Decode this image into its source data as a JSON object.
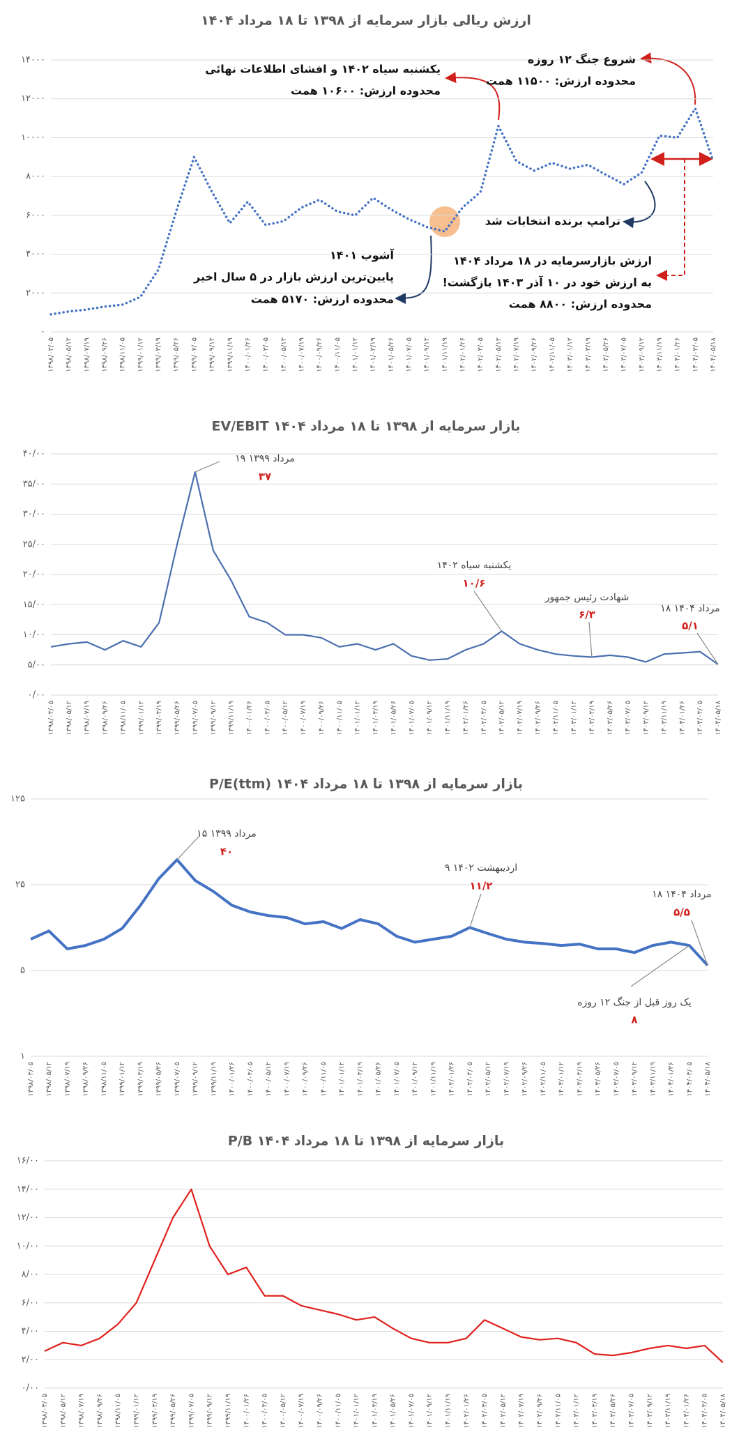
{
  "chart_data": [
    {
      "type": "line",
      "title": "ارزش ریالی بازار سرمایه از ۱۳۹۸ تا ۱۸ مرداد ۱۴۰۴",
      "line_style": "dotted",
      "color": "#4472c4",
      "grid": true,
      "categories": [
        "۱۳۹۸/۰۳/۰۵",
        "۱۳۹۸/۰۵/۱۲",
        "۱۳۹۸/۰۷/۱۹",
        "۱۳۹۸/۰۹/۲۶",
        "۱۳۹۸/۱۱/۰۵",
        "۱۳۹۹/۰۱/۱۲",
        "۱۳۹۹/۰۳/۱۹",
        "۱۳۹۹/۰۵/۲۶",
        "۱۳۹۹/۰۷/۰۵",
        "۱۳۹۹/۰۹/۱۲",
        "۱۳۹۹/۱۱/۱۹",
        "۱۴۰۰/۰۱/۲۶",
        "۱۴۰۰/۰۳/۰۵",
        "۱۴۰۰/۰۵/۱۲",
        "۱۴۰۰/۰۷/۱۹",
        "۱۴۰۰/۰۹/۲۶",
        "۱۴۰۰/۱۱/۰۵",
        "۱۴۰۱/۰۱/۱۲",
        "۱۴۰۱/۰۳/۱۹",
        "۱۴۰۱/۰۵/۲۶",
        "۱۴۰۱/۰۷/۰۵",
        "۱۴۰۱/۰۹/۱۲",
        "۱۴۰۱/۱۱/۱۹",
        "۱۴۰۲/۰۱/۲۶",
        "۱۴۰۲/۰۳/۰۵",
        "۱۴۰۲/۰۵/۱۲",
        "۱۴۰۲/۰۷/۱۹",
        "۱۴۰۲/۰۹/۲۶",
        "۱۴۰۲/۱۱/۰۵",
        "۱۴۰۳/۰۱/۱۲",
        "۱۴۰۳/۰۳/۱۹",
        "۱۴۰۳/۰۵/۲۶",
        "۱۴۰۳/۰۷/۰۵",
        "۱۴۰۳/۰۹/۱۲",
        "۱۴۰۳/۱۱/۱۹",
        "۱۴۰۴/۰۱/۲۶",
        "۱۴۰۴/۰۳/۰۵",
        "۱۴۰۴/۰۵/۱۸"
      ],
      "values": [
        900,
        1050,
        1150,
        1300,
        1400,
        1800,
        3200,
        6200,
        9000,
        7200,
        5600,
        6700,
        5500,
        5700,
        6400,
        6800,
        6200,
        6000,
        6900,
        6300,
        5800,
        5400,
        5170,
        6400,
        7200,
        10600,
        8800,
        8300,
        8700,
        8400,
        8600,
        8100,
        7600,
        8200,
        10100,
        10000,
        11500,
        8800
      ],
      "ylim": [
        0,
        14000
      ],
      "yticks": [
        {
          "value": 0,
          "label": "۰"
        },
        {
          "value": 2000,
          "label": "۲۰۰۰"
        },
        {
          "value": 4000,
          "label": "۴۰۰۰"
        },
        {
          "value": 6000,
          "label": "۶۰۰۰"
        },
        {
          "value": 8000,
          "label": "۸۰۰۰"
        },
        {
          "value": 10000,
          "label": "۱۰۰۰۰"
        },
        {
          "value": 12000,
          "label": "۱۲۰۰۰"
        },
        {
          "value": 14000,
          "label": "۱۴۰۰۰"
        }
      ],
      "annotations": [
        {
          "lines": [
            "شروع جنگ ۱۲ روزه",
            "محدوده ارزش: ۱۱۵۰۰ همت"
          ]
        },
        {
          "lines": [
            "یکشنبه سیاه ۱۴۰۲ و افشای اطلاعات نهائی",
            "محدوده ارزش: ۱۰۶۰۰ همت"
          ]
        },
        {
          "lines": [
            "ترامپ برنده انتخابات شد"
          ]
        },
        {
          "lines": [
            "آشوب ۱۴۰۱",
            "پایین‌ترین ارزش بازار در ۵ سال اخیر",
            "محدوده ارزش: ۵۱۷۰ همت"
          ]
        },
        {
          "lines": [
            "ارزش بازارسرمایه در ۱۸ مرداد ۱۴۰۴",
            "به ارزش خود در ۱۰ آذر ۱۴۰۳ بازگشت!",
            "محدوده ارزش: ۸۸۰۰ همت"
          ]
        }
      ]
    },
    {
      "type": "line",
      "title": "EV/EBIT بازار سرمایه از ۱۳۹۸ تا ۱۸ مرداد ۱۴۰۴",
      "line_style": "solid",
      "color": "#4a6fae",
      "grid": true,
      "categories": [
        "۱۳۹۸/۰۳/۰۵",
        "۱۳۹۸/۰۵/۱۲",
        "۱۳۹۸/۰۷/۱۹",
        "۱۳۹۸/۰۹/۲۶",
        "۱۳۹۸/۱۱/۰۵",
        "۱۳۹۹/۰۱/۱۲",
        "۱۳۹۹/۰۳/۱۹",
        "۱۳۹۹/۰۵/۲۶",
        "۱۳۹۹/۰۷/۰۵",
        "۱۳۹۹/۰۹/۱۲",
        "۱۳۹۹/۱۱/۱۹",
        "۱۴۰۰/۰۱/۲۶",
        "۱۴۰۰/۰۳/۰۵",
        "۱۴۰۰/۰۵/۱۲",
        "۱۴۰۰/۰۷/۱۹",
        "۱۴۰۰/۰۹/۲۶",
        "۱۴۰۰/۱۱/۰۵",
        "۱۴۰۱/۰۱/۱۲",
        "۱۴۰۱/۰۳/۱۹",
        "۱۴۰۱/۰۵/۲۶",
        "۱۴۰۱/۰۷/۰۵",
        "۱۴۰۱/۰۹/۱۲",
        "۱۴۰۱/۱۱/۱۹",
        "۱۴۰۲/۰۱/۲۶",
        "۱۴۰۲/۰۳/۰۵",
        "۱۴۰۲/۰۵/۱۲",
        "۱۴۰۲/۰۷/۱۹",
        "۱۴۰۲/۰۹/۲۶",
        "۱۴۰۲/۱۱/۰۵",
        "۱۴۰۳/۰۱/۱۲",
        "۱۴۰۳/۰۳/۱۹",
        "۱۴۰۳/۰۵/۲۶",
        "۱۴۰۳/۰۷/۰۵",
        "۱۴۰۳/۰۹/۱۲",
        "۱۴۰۳/۱۱/۱۹",
        "۱۴۰۴/۰۱/۲۶",
        "۱۴۰۴/۰۳/۰۵",
        "۱۴۰۴/۰۵/۱۸"
      ],
      "values": [
        8,
        8.5,
        8.8,
        7.5,
        9,
        8,
        12,
        25,
        37,
        24,
        19,
        13,
        12,
        10,
        10,
        9.5,
        8,
        8.5,
        7.5,
        8.5,
        6.5,
        5.8,
        6,
        7.5,
        8.5,
        10.6,
        8.5,
        7.5,
        6.8,
        6.5,
        6.3,
        6.6,
        6.3,
        5.5,
        6.8,
        7,
        7.2,
        5.1
      ],
      "ylim": [
        0,
        40
      ],
      "yticks": [
        {
          "value": 0,
          "label": "۰/۰۰"
        },
        {
          "value": 5,
          "label": "۵/۰۰"
        },
        {
          "value": 10,
          "label": "۱۰/۰۰"
        },
        {
          "value": 15,
          "label": "۱۵/۰۰"
        },
        {
          "value": 20,
          "label": "۲۰/۰۰"
        },
        {
          "value": 25,
          "label": "۲۵/۰۰"
        },
        {
          "value": 30,
          "label": "۳۰/۰۰"
        },
        {
          "value": 35,
          "label": "۳۵/۰۰"
        },
        {
          "value": 40,
          "label": "۴۰/۰۰"
        }
      ],
      "annotations": [
        {
          "lines": [
            "۱۹ مرداد ۱۳۹۹"
          ],
          "value": "۳۷"
        },
        {
          "lines": [
            "یکشنبه سیاه ۱۴۰۲"
          ],
          "value": "۱۰/۶"
        },
        {
          "lines": [
            "شهادت رئیس جمهور"
          ],
          "value": "۶/۳"
        },
        {
          "lines": [
            "۱۸ مرداد ۱۴۰۴"
          ],
          "value": "۵/۱"
        }
      ]
    },
    {
      "type": "line",
      "title": "P/E(ttm) بازار سرمایه از ۱۳۹۸ تا ۱۸ مرداد ۱۴۰۴",
      "line_style": "thick",
      "color": "#4472c4",
      "grid": true,
      "log_scale": true,
      "categories": [
        "۱۳۹۸/۰۳/۰۵",
        "۱۳۹۸/۰۵/۱۲",
        "۱۳۹۸/۰۷/۱۹",
        "۱۳۹۸/۰۹/۲۶",
        "۱۳۹۸/۱۱/۰۵",
        "۱۳۹۹/۰۱/۱۲",
        "۱۳۹۹/۰۳/۱۹",
        "۱۳۹۹/۰۵/۲۶",
        "۱۳۹۹/۰۷/۰۵",
        "۱۳۹۹/۰۹/۱۲",
        "۱۳۹۹/۱۱/۱۹",
        "۱۴۰۰/۰۱/۲۶",
        "۱۴۰۰/۰۳/۰۵",
        "۱۴۰۰/۰۵/۱۲",
        "۱۴۰۰/۰۷/۱۹",
        "۱۴۰۰/۰۹/۲۶",
        "۱۴۰۰/۱۱/۰۵",
        "۱۴۰۱/۰۱/۱۲",
        "۱۴۰۱/۰۳/۱۹",
        "۱۴۰۱/۰۵/۲۶",
        "۱۴۰۱/۰۷/۰۵",
        "۱۴۰۱/۰۹/۱۲",
        "۱۴۰۱/۱۱/۱۹",
        "۱۴۰۲/۰۱/۲۶",
        "۱۴۰۲/۰۳/۰۵",
        "۱۴۰۲/۰۵/۱۲",
        "۱۴۰۲/۰۷/۱۹",
        "۱۴۰۲/۰۹/۲۶",
        "۱۴۰۲/۱۱/۰۵",
        "۱۴۰۳/۰۱/۱۲",
        "۱۴۰۳/۰۳/۱۹",
        "۱۴۰۳/۰۵/۲۶",
        "۱۴۰۳/۰۷/۰۵",
        "۱۴۰۳/۰۹/۱۲",
        "۱۴۰۳/۱۱/۱۹",
        "۱۴۰۴/۰۱/۲۶",
        "۱۴۰۴/۰۳/۰۵",
        "۱۴۰۴/۰۵/۱۸"
      ],
      "values": [
        9,
        10.5,
        7.5,
        8,
        9,
        11,
        17,
        28,
        40,
        27,
        22,
        17,
        15,
        14,
        13.5,
        12,
        12.5,
        11,
        13,
        12,
        9.5,
        8.5,
        9,
        9.5,
        11.2,
        10,
        9,
        8.5,
        8.3,
        8,
        8.2,
        7.5,
        7.5,
        7,
        8,
        8.5,
        8,
        5.5
      ],
      "ylim": [
        1,
        125
      ],
      "yticks": [
        {
          "value": 1,
          "label": "۱"
        },
        {
          "value": 5,
          "label": "۵"
        },
        {
          "value": 25,
          "label": "۲۵"
        },
        {
          "value": 125,
          "label": "۱۲۵"
        }
      ],
      "annotations": [
        {
          "lines": [
            "۱۵ مرداد ۱۳۹۹"
          ],
          "value": "۴۰"
        },
        {
          "lines": [
            "۹ اردیبهشت ۱۴۰۲"
          ],
          "value": "۱۱/۲"
        },
        {
          "lines": [
            "۱۸ مرداد ۱۴۰۴"
          ],
          "value": "۵/۵"
        },
        {
          "lines": [
            "یک روز قبل از جنگ ۱۲ روزه"
          ],
          "value": "۸"
        }
      ]
    },
    {
      "type": "line",
      "title": "P/B  بازار سرمایه از ۱۳۹۸ تا ۱۸ مرداد ۱۴۰۴",
      "line_style": "solid",
      "color": "#e0201c",
      "grid": true,
      "categories": [
        "۱۳۹۸/۰۳/۰۵",
        "۱۳۹۸/۰۵/۱۲",
        "۱۳۹۸/۰۷/۱۹",
        "۱۳۹۸/۰۹/۲۶",
        "۱۳۹۸/۱۱/۰۵",
        "۱۳۹۹/۰۱/۱۲",
        "۱۳۹۹/۰۳/۱۹",
        "۱۳۹۹/۰۵/۲۶",
        "۱۳۹۹/۰۷/۰۵",
        "۱۳۹۹/۰۹/۱۲",
        "۱۳۹۹/۱۱/۱۹",
        "۱۴۰۰/۰۱/۲۶",
        "۱۴۰۰/۰۳/۰۵",
        "۱۴۰۰/۰۵/۱۲",
        "۱۴۰۰/۰۷/۱۹",
        "۱۴۰۰/۰۹/۲۶",
        "۱۴۰۰/۱۱/۰۵",
        "۱۴۰۱/۰۱/۱۲",
        "۱۴۰۱/۰۳/۱۹",
        "۱۴۰۱/۰۵/۲۶",
        "۱۴۰۱/۰۷/۰۵",
        "۱۴۰۱/۰۹/۱۲",
        "۱۴۰۱/۱۱/۱۹",
        "۱۴۰۲/۰۱/۲۶",
        "۱۴۰۲/۰۳/۰۵",
        "۱۴۰۲/۰۵/۱۲",
        "۱۴۰۲/۰۷/۱۹",
        "۱۴۰۲/۰۹/۲۶",
        "۱۴۰۲/۱۱/۰۵",
        "۱۴۰۳/۰۱/۱۲",
        "۱۴۰۳/۰۳/۱۹",
        "۱۴۰۳/۰۵/۲۶",
        "۱۴۰۳/۰۷/۰۵",
        "۱۴۰۳/۰۹/۱۲",
        "۱۴۰۳/۱۱/۱۹",
        "۱۴۰۴/۰۱/۲۶",
        "۱۴۰۴/۰۳/۰۵",
        "۱۴۰۴/۰۵/۱۸"
      ],
      "values": [
        2.6,
        3.2,
        3,
        3.5,
        4.5,
        6,
        9,
        12,
        14,
        10,
        8,
        8.5,
        6.5,
        6.5,
        5.8,
        5.5,
        5.2,
        4.8,
        5,
        4.2,
        3.5,
        3.2,
        3.2,
        3.5,
        4.8,
        4.2,
        3.6,
        3.4,
        3.5,
        3.2,
        2.4,
        2.3,
        2.5,
        2.8,
        3,
        2.8,
        3,
        1.8
      ],
      "ylim": [
        0,
        16
      ],
      "yticks": [
        {
          "value": 0,
          "label": "۰/۰۰"
        },
        {
          "value": 2,
          "label": "۲/۰۰"
        },
        {
          "value": 4,
          "label": "۴/۰۰"
        },
        {
          "value": 6,
          "label": "۶/۰۰"
        },
        {
          "value": 8,
          "label": "۸/۰۰"
        },
        {
          "value": 10,
          "label": "۱۰/۰۰"
        },
        {
          "value": 12,
          "label": "۱۲/۰۰"
        },
        {
          "value": 14,
          "label": "۱۴/۰۰"
        },
        {
          "value": 16,
          "label": "۱۶/۰۰"
        }
      ],
      "annotations": []
    }
  ]
}
